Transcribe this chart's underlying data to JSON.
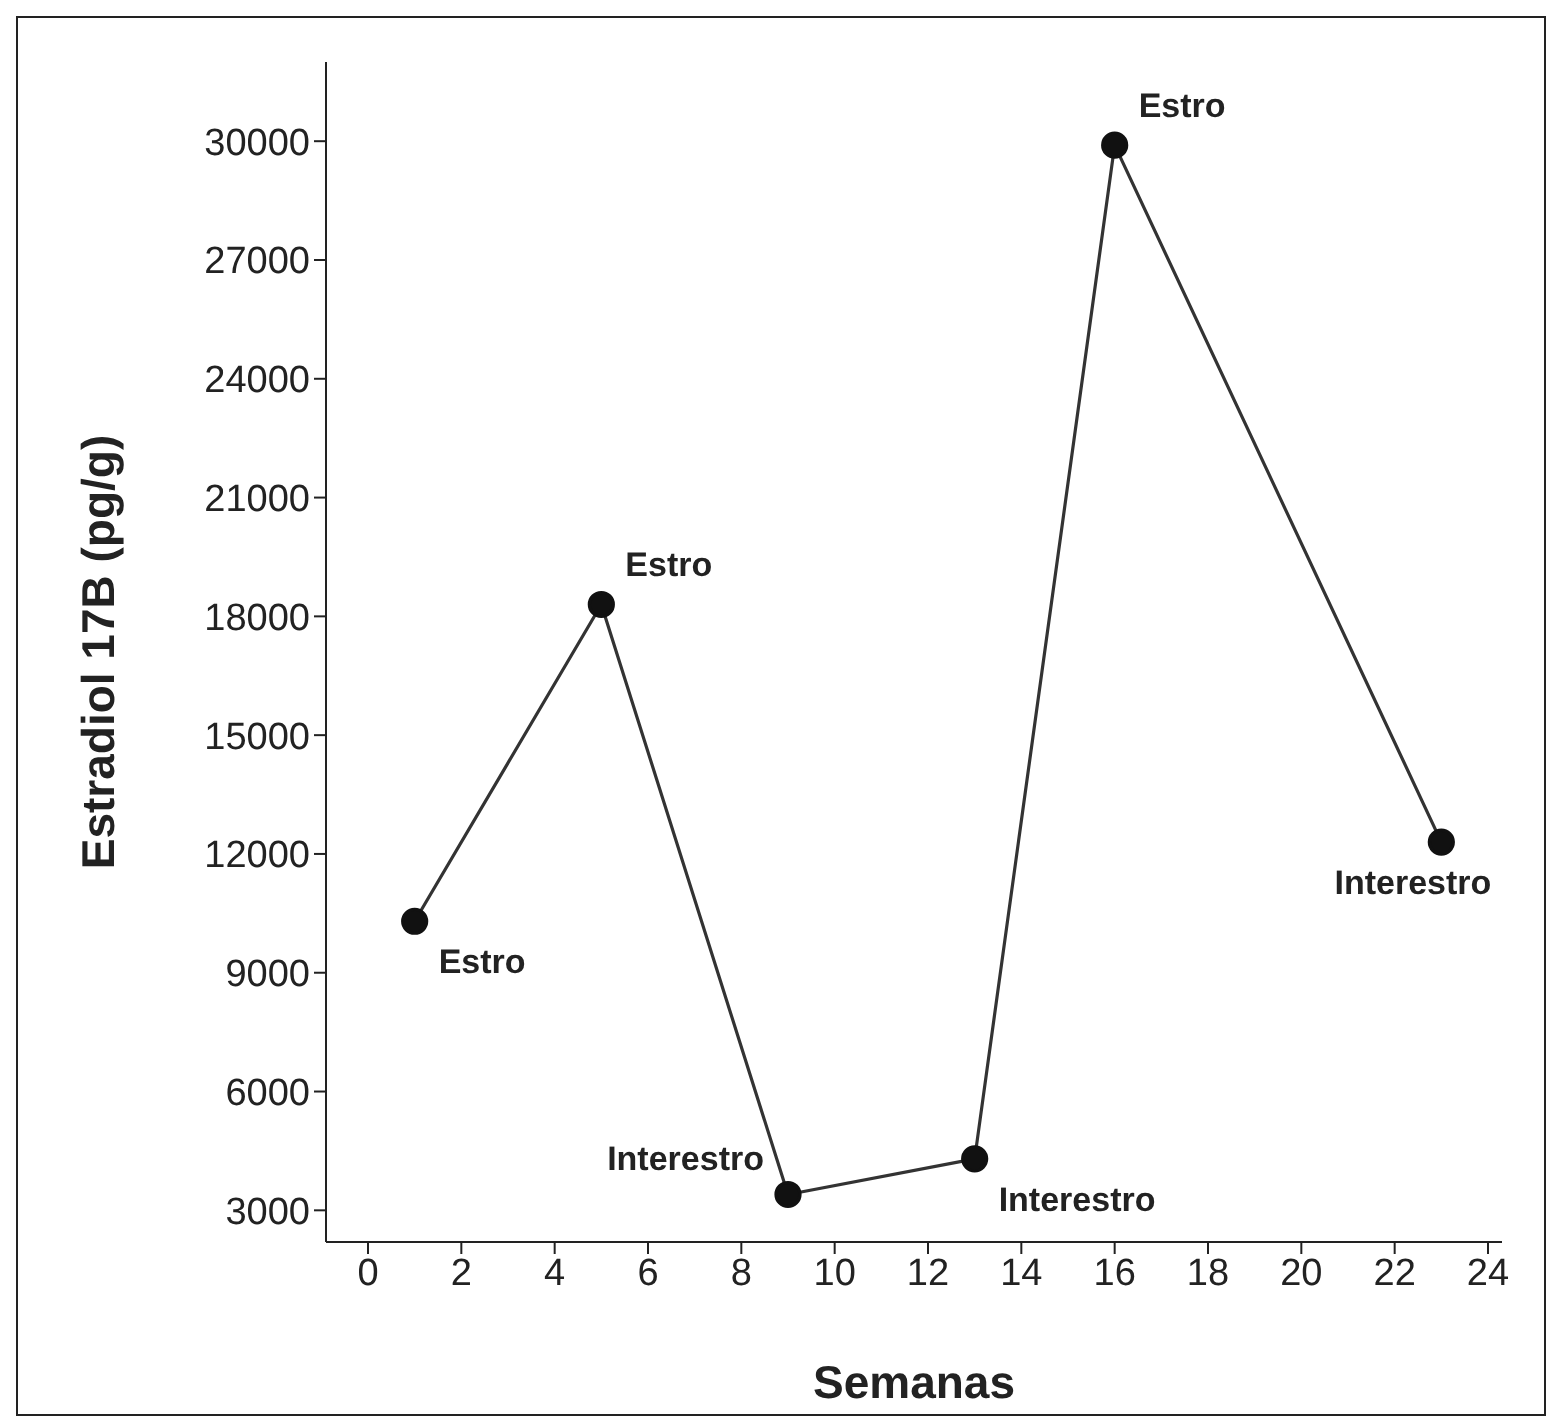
{
  "chart_data": {
    "type": "line",
    "xlabel": "Semanas",
    "ylabel": "Estradiol 17B (pg/g)",
    "x": [
      1,
      5,
      9,
      13,
      16,
      23
    ],
    "values": [
      10300,
      18300,
      3400,
      4300,
      29900,
      12300
    ],
    "color": "#333333",
    "marker": "circle",
    "line_style": "solid",
    "grid": false,
    "legend": false,
    "xlim": [
      -0.9,
      24.3
    ],
    "xticks": [
      0,
      2,
      4,
      6,
      8,
      10,
      12,
      14,
      16,
      18,
      20,
      22,
      24
    ],
    "ylim": [
      2200,
      32000
    ],
    "yticks": [
      3000,
      6000,
      9000,
      12000,
      15000,
      18000,
      21000,
      24000,
      27000,
      30000
    ],
    "annotations": [
      {
        "text": "Estro",
        "x": 1,
        "y": 10300
      },
      {
        "text": "Estro",
        "x": 5,
        "y": 18300
      },
      {
        "text": "Interestro",
        "x": 9,
        "y": 3400
      },
      {
        "text": "Interestro",
        "x": 13,
        "y": 4300
      },
      {
        "text": "Estro",
        "x": 16,
        "y": 29900
      },
      {
        "text": "Interestro",
        "x": 23,
        "y": 12300
      }
    ]
  }
}
